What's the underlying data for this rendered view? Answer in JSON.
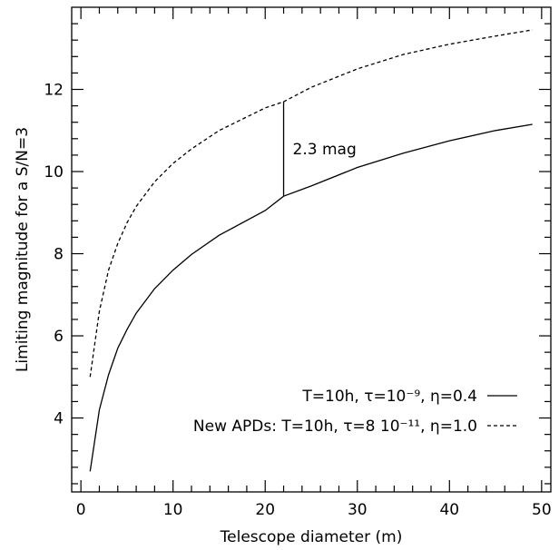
{
  "chart_data": {
    "type": "line",
    "xlabel": "Telescope diameter (m)",
    "ylabel": "Limiting magnitude for a S/N=3",
    "xlim": [
      -1,
      51
    ],
    "ylim": [
      2.2,
      14.0
    ],
    "grid": false,
    "legend_position": "bottom-right",
    "x_ticks": [
      "0",
      "10",
      "20",
      "30",
      "40",
      "50"
    ],
    "y_ticks": [
      "4",
      "6",
      "8",
      "10",
      "12"
    ],
    "series": [
      {
        "name": "",
        "legend_label": "T=10h, τ=10⁻⁹, η=0.4",
        "line_style": "solid",
        "x": [
          1,
          2,
          3,
          4,
          5,
          6,
          8,
          10,
          12,
          15,
          20,
          22,
          25,
          30,
          35,
          40,
          45,
          49
        ],
        "values": [
          2.7,
          4.2,
          5.05,
          5.7,
          6.15,
          6.55,
          7.15,
          7.6,
          7.98,
          8.45,
          9.05,
          9.4,
          9.65,
          10.1,
          10.45,
          10.75,
          11.0,
          11.15
        ]
      },
      {
        "name": "",
        "legend_label": "New APDs: T=10h, τ=8 10⁻¹¹, η=1.0",
        "line_style": "dashed",
        "x": [
          1,
          2,
          3,
          4,
          5,
          6,
          8,
          10,
          12,
          15,
          20,
          22,
          25,
          30,
          35,
          40,
          45,
          49
        ],
        "values": [
          5.0,
          6.6,
          7.6,
          8.25,
          8.75,
          9.15,
          9.75,
          10.2,
          10.55,
          11.0,
          11.55,
          11.7,
          12.05,
          12.5,
          12.85,
          13.1,
          13.3,
          13.45
        ]
      }
    ],
    "annotations": [
      {
        "text": "2.3 mag",
        "x": 22,
        "y_from": 9.4,
        "y_to": 11.7
      }
    ]
  }
}
